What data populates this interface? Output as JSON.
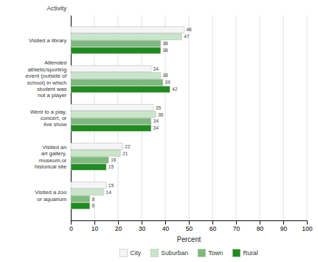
{
  "chart_data": {
    "type": "bar",
    "orientation": "horizontal",
    "ylabel": "Activity",
    "xlabel": "Percent",
    "categories": [
      "Visited a library",
      "Attended\nathletic/sporting\nevent (outside of\nschool) in which\nstudent was\nnot a player",
      "Went to a play,\nconcert, or\nlive show",
      "Visited an\nart gallery,\nmuseum,or\nhistorical site",
      "Visited a zoo\nor aquarium"
    ],
    "series": [
      {
        "name": "City",
        "color": "#f5f5f5",
        "values": [
          48,
          34,
          35,
          22,
          15
        ]
      },
      {
        "name": "Suburban",
        "color": "#c8e6c8",
        "values": [
          47,
          38,
          36,
          21,
          14
        ]
      },
      {
        "name": "Town",
        "color": "#7dba7d",
        "values": [
          38,
          39,
          34,
          16,
          8
        ]
      },
      {
        "name": "Rural",
        "color": "#1e8c1e",
        "values": [
          38,
          42,
          34,
          15,
          8
        ]
      }
    ],
    "xlim": [
      0,
      100
    ],
    "xticks": [
      0,
      10,
      20,
      30,
      40,
      50,
      60,
      70,
      80,
      90,
      100
    ],
    "grid": true,
    "legend": "bottom",
    "data_labels": true
  }
}
